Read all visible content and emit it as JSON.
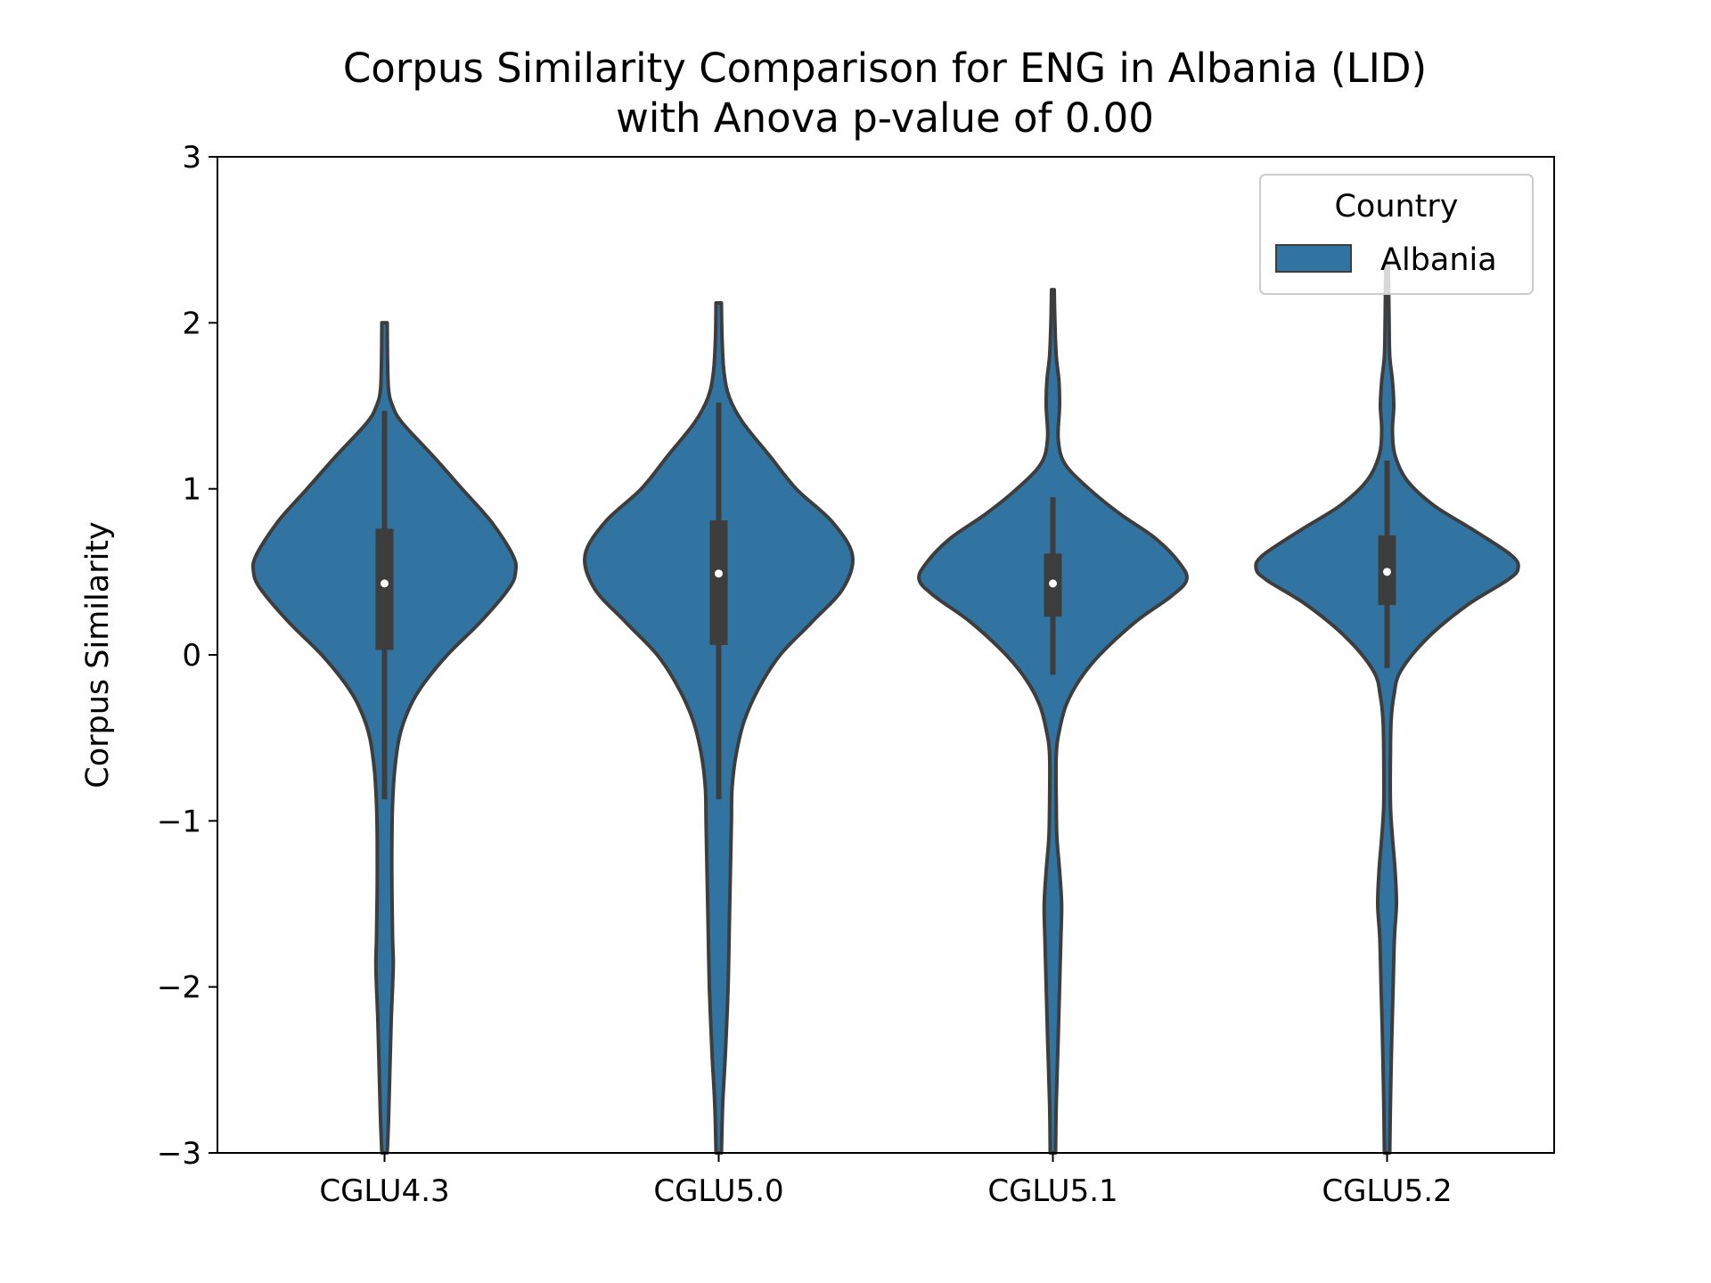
{
  "chart_data": {
    "type": "violin",
    "title_line1": "Corpus Similarity Comparison for ENG in Albania (LID)",
    "title_line2": "with Anova p-value of 0.00",
    "xlabel": "",
    "ylabel": "Corpus Similarity",
    "ylim": [
      -3,
      3
    ],
    "yticks": [
      {
        "value": 3,
        "label": "3"
      },
      {
        "value": 2,
        "label": "2"
      },
      {
        "value": 1,
        "label": "1"
      },
      {
        "value": 0,
        "label": "0"
      },
      {
        "value": -1,
        "label": "−1"
      },
      {
        "value": -2,
        "label": "−2"
      },
      {
        "value": -3,
        "label": "−3"
      }
    ],
    "categories": [
      "CGLU4.3",
      "CGLU5.0",
      "CGLU5.1",
      "CGLU5.2"
    ],
    "legend": {
      "title": "Country",
      "entries": [
        "Albania"
      ],
      "position": "top-right"
    },
    "colors": {
      "violin_fill": "#3274a1",
      "outline": "#3d3d3d",
      "box": "#3d3d3d",
      "median": "#ffffff"
    },
    "grid": false,
    "series": [
      {
        "name": "Albania",
        "violins": [
          {
            "category": "CGLU4.3",
            "median": 0.43,
            "q1": 0.03,
            "q3": 0.76,
            "whisker_low": -0.87,
            "whisker_high": 1.47,
            "density": [
              [
                -3.0,
                0.02
              ],
              [
                -2.8,
                0.03
              ],
              [
                -2.5,
                0.04
              ],
              [
                -2.2,
                0.05
              ],
              [
                -2.0,
                0.06
              ],
              [
                -1.85,
                0.065
              ],
              [
                -1.7,
                0.06
              ],
              [
                -1.4,
                0.055
              ],
              [
                -1.1,
                0.055
              ],
              [
                -0.9,
                0.06
              ],
              [
                -0.7,
                0.075
              ],
              [
                -0.5,
                0.11
              ],
              [
                -0.35,
                0.17
              ],
              [
                -0.2,
                0.27
              ],
              [
                0.0,
                0.47
              ],
              [
                0.2,
                0.72
              ],
              [
                0.4,
                0.93
              ],
              [
                0.5,
                0.98
              ],
              [
                0.6,
                0.96
              ],
              [
                0.8,
                0.8
              ],
              [
                1.0,
                0.58
              ],
              [
                1.2,
                0.36
              ],
              [
                1.4,
                0.13
              ],
              [
                1.5,
                0.06
              ],
              [
                1.6,
                0.03
              ],
              [
                1.8,
                0.022
              ],
              [
                2.0,
                0.02
              ]
            ]
          },
          {
            "category": "CGLU5.0",
            "median": 0.49,
            "q1": 0.06,
            "q3": 0.81,
            "whisker_low": -0.87,
            "whisker_high": 1.52,
            "density": [
              [
                -3.0,
                0.02
              ],
              [
                -2.7,
                0.03
              ],
              [
                -2.4,
                0.05
              ],
              [
                -2.0,
                0.07
              ],
              [
                -1.6,
                0.08
              ],
              [
                -1.2,
                0.09
              ],
              [
                -1.0,
                0.095
              ],
              [
                -0.8,
                0.1
              ],
              [
                -0.6,
                0.13
              ],
              [
                -0.4,
                0.19
              ],
              [
                -0.2,
                0.3
              ],
              [
                0.0,
                0.46
              ],
              [
                0.2,
                0.7
              ],
              [
                0.4,
                0.93
              ],
              [
                0.6,
                1.0
              ],
              [
                0.8,
                0.85
              ],
              [
                1.0,
                0.58
              ],
              [
                1.2,
                0.38
              ],
              [
                1.4,
                0.18
              ],
              [
                1.55,
                0.08
              ],
              [
                1.7,
                0.04
              ],
              [
                1.9,
                0.025
              ],
              [
                2.12,
                0.02
              ]
            ]
          },
          {
            "category": "CGLU5.1",
            "median": 0.43,
            "q1": 0.23,
            "q3": 0.61,
            "whisker_low": -0.12,
            "whisker_high": 0.95,
            "density": [
              [
                -3.0,
                0.02
              ],
              [
                -2.7,
                0.025
              ],
              [
                -2.3,
                0.04
              ],
              [
                -2.0,
                0.05
              ],
              [
                -1.7,
                0.06
              ],
              [
                -1.5,
                0.065
              ],
              [
                -1.3,
                0.05
              ],
              [
                -1.1,
                0.03
              ],
              [
                -0.9,
                0.025
              ],
              [
                -0.6,
                0.025
              ],
              [
                -0.45,
                0.05
              ],
              [
                -0.3,
                0.1
              ],
              [
                -0.15,
                0.2
              ],
              [
                0.0,
                0.35
              ],
              [
                0.2,
                0.62
              ],
              [
                0.35,
                0.88
              ],
              [
                0.45,
                1.0
              ],
              [
                0.55,
                0.95
              ],
              [
                0.7,
                0.77
              ],
              [
                0.85,
                0.5
              ],
              [
                1.0,
                0.27
              ],
              [
                1.15,
                0.09
              ],
              [
                1.3,
                0.04
              ],
              [
                1.5,
                0.05
              ],
              [
                1.65,
                0.045
              ],
              [
                1.8,
                0.025
              ],
              [
                2.0,
                0.015
              ],
              [
                2.2,
                0.01
              ]
            ]
          },
          {
            "category": "CGLU5.2",
            "median": 0.5,
            "q1": 0.3,
            "q3": 0.72,
            "whisker_low": -0.08,
            "whisker_high": 1.17,
            "density": [
              [
                -3.0,
                0.02
              ],
              [
                -2.7,
                0.025
              ],
              [
                -2.3,
                0.035
              ],
              [
                -2.0,
                0.045
              ],
              [
                -1.7,
                0.055
              ],
              [
                -1.5,
                0.07
              ],
              [
                -1.3,
                0.06
              ],
              [
                -1.1,
                0.04
              ],
              [
                -0.9,
                0.025
              ],
              [
                -0.6,
                0.025
              ],
              [
                -0.4,
                0.03
              ],
              [
                -0.25,
                0.05
              ],
              [
                -0.1,
                0.1
              ],
              [
                0.1,
                0.3
              ],
              [
                0.3,
                0.6
              ],
              [
                0.45,
                0.9
              ],
              [
                0.52,
                0.98
              ],
              [
                0.6,
                0.93
              ],
              [
                0.75,
                0.65
              ],
              [
                0.9,
                0.35
              ],
              [
                1.05,
                0.15
              ],
              [
                1.2,
                0.06
              ],
              [
                1.35,
                0.04
              ],
              [
                1.5,
                0.05
              ],
              [
                1.65,
                0.04
              ],
              [
                1.8,
                0.02
              ],
              [
                2.0,
                0.015
              ],
              [
                2.35,
                0.01
              ]
            ]
          }
        ]
      }
    ]
  }
}
